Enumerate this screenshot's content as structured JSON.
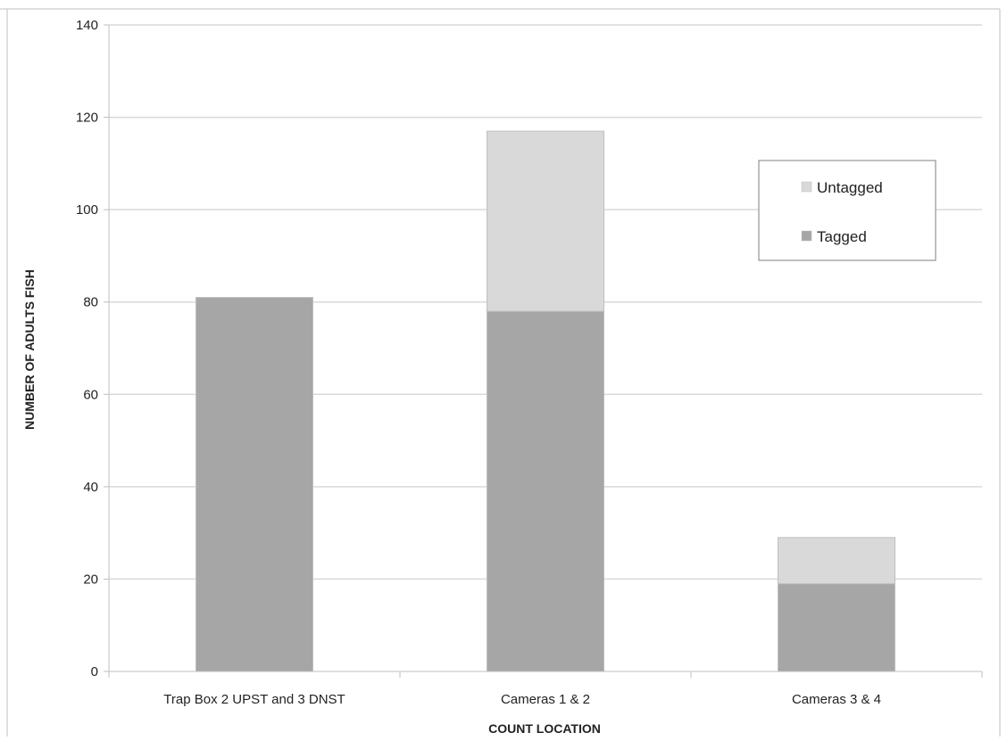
{
  "chart_data": {
    "type": "bar",
    "stacked": true,
    "categories": [
      "Trap Box 2 UPST and 3 DNST",
      "Cameras 1 & 2",
      "Cameras 3 & 4"
    ],
    "series": [
      {
        "name": "Tagged",
        "values": [
          81,
          78,
          19
        ],
        "color": "#a6a6a6"
      },
      {
        "name": "Untagged",
        "values": [
          0,
          39,
          10
        ],
        "color": "#d9d9d9"
      }
    ],
    "title": "",
    "xlabel": "COUNT LOCATION",
    "ylabel": "NUMBER OF ADULTS FISH",
    "ylim": [
      0,
      140
    ],
    "yticks": [
      0,
      20,
      40,
      60,
      80,
      100,
      120,
      140
    ],
    "grid": true,
    "legend": {
      "placement": "top-right",
      "order": [
        "Untagged",
        "Tagged"
      ]
    },
    "colors": {
      "gridline": "#d9d9d9",
      "axis": "#bfbfbf",
      "bar_border": "#bfbfbf",
      "legend_border": "#7f7f7f"
    }
  }
}
